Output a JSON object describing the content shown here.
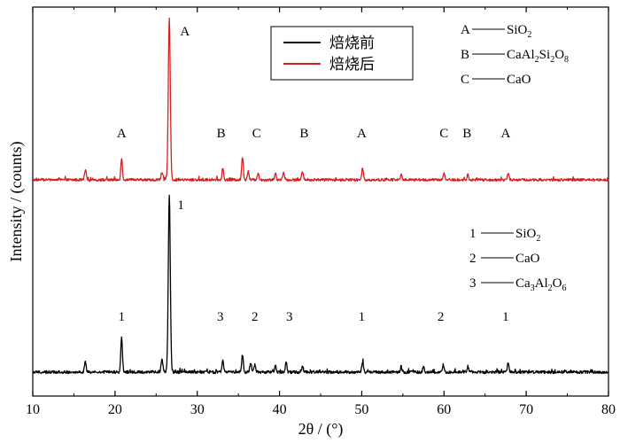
{
  "chart_data": {
    "type": "line",
    "xlabel": "2θ / (°)",
    "ylabel": "Intensity / (counts)",
    "xlim": [
      10,
      80
    ],
    "xticks": [
      10,
      20,
      30,
      40,
      50,
      60,
      70,
      80
    ],
    "yticks": "none",
    "grid": false,
    "legend": {
      "placement": "top-center",
      "entries": [
        {
          "name": "焙烧前",
          "color": "#000000"
        },
        {
          "name": "焙烧后",
          "color": "#d42020"
        }
      ]
    },
    "series": [
      {
        "name": "焙烧后",
        "color": "#d42020",
        "baseline": 0,
        "peaks": [
          {
            "x": 16.4,
            "y": 6
          },
          {
            "x": 20.8,
            "y": 13
          },
          {
            "x": 25.7,
            "y": 5
          },
          {
            "x": 26.6,
            "y": 100
          },
          {
            "x": 33.1,
            "y": 7
          },
          {
            "x": 35.5,
            "y": 14
          },
          {
            "x": 36.2,
            "y": 5
          },
          {
            "x": 37.4,
            "y": 4
          },
          {
            "x": 39.5,
            "y": 4
          },
          {
            "x": 40.5,
            "y": 5
          },
          {
            "x": 42.8,
            "y": 5
          },
          {
            "x": 50.1,
            "y": 7
          },
          {
            "x": 54.8,
            "y": 3
          },
          {
            "x": 60.0,
            "y": 4
          },
          {
            "x": 62.9,
            "y": 3
          },
          {
            "x": 67.8,
            "y": 4
          }
        ],
        "annotations": [
          {
            "x": 20.8,
            "label": "A"
          },
          {
            "x": 28.5,
            "label": "A"
          },
          {
            "x": 32.9,
            "label": "B"
          },
          {
            "x": 37.2,
            "label": "C"
          },
          {
            "x": 43.0,
            "label": "B"
          },
          {
            "x": 50.0,
            "label": "A"
          },
          {
            "x": 60.0,
            "label": "C"
          },
          {
            "x": 62.8,
            "label": "B"
          },
          {
            "x": 67.5,
            "label": "A"
          }
        ]
      },
      {
        "name": "焙烧前",
        "color": "#000000",
        "baseline": 0,
        "peaks": [
          {
            "x": 16.4,
            "y": 6
          },
          {
            "x": 20.8,
            "y": 20
          },
          {
            "x": 25.7,
            "y": 8
          },
          {
            "x": 26.6,
            "y": 100
          },
          {
            "x": 33.1,
            "y": 7
          },
          {
            "x": 35.5,
            "y": 10
          },
          {
            "x": 36.5,
            "y": 5
          },
          {
            "x": 37.0,
            "y": 4
          },
          {
            "x": 39.5,
            "y": 4
          },
          {
            "x": 40.8,
            "y": 6
          },
          {
            "x": 42.8,
            "y": 3
          },
          {
            "x": 50.1,
            "y": 6
          },
          {
            "x": 54.8,
            "y": 3
          },
          {
            "x": 57.5,
            "y": 3
          },
          {
            "x": 59.9,
            "y": 4
          },
          {
            "x": 62.9,
            "y": 3
          },
          {
            "x": 67.8,
            "y": 5
          }
        ],
        "annotations": [
          {
            "x": 20.8,
            "label": "1"
          },
          {
            "x": 28.0,
            "label": "1"
          },
          {
            "x": 32.8,
            "label": "3"
          },
          {
            "x": 37.0,
            "label": "2"
          },
          {
            "x": 41.2,
            "label": "3"
          },
          {
            "x": 50.0,
            "label": "1"
          },
          {
            "x": 59.6,
            "label": "2"
          },
          {
            "x": 67.5,
            "label": "1"
          }
        ]
      }
    ],
    "phase_keys": [
      {
        "group": "after",
        "entries": [
          {
            "key": "A",
            "formula": [
              {
                "t": "SiO"
              },
              {
                "t": "2",
                "sub": true
              }
            ]
          },
          {
            "key": "B",
            "formula": [
              {
                "t": "CaAl"
              },
              {
                "t": "2",
                "sub": true
              },
              {
                "t": "Si"
              },
              {
                "t": "2",
                "sub": true
              },
              {
                "t": "O"
              },
              {
                "t": "8",
                "sub": true
              }
            ]
          },
          {
            "key": "C",
            "formula": [
              {
                "t": "CaO"
              }
            ]
          }
        ]
      },
      {
        "group": "before",
        "entries": [
          {
            "key": "1",
            "formula": [
              {
                "t": "SiO"
              },
              {
                "t": "2",
                "sub": true
              }
            ]
          },
          {
            "key": "2",
            "formula": [
              {
                "t": "CaO"
              }
            ]
          },
          {
            "key": "3",
            "formula": [
              {
                "t": "Ca"
              },
              {
                "t": "3",
                "sub": true
              },
              {
                "t": "Al"
              },
              {
                "t": "2",
                "sub": true
              },
              {
                "t": "O"
              },
              {
                "t": "6",
                "sub": true
              }
            ]
          }
        ]
      }
    ]
  }
}
